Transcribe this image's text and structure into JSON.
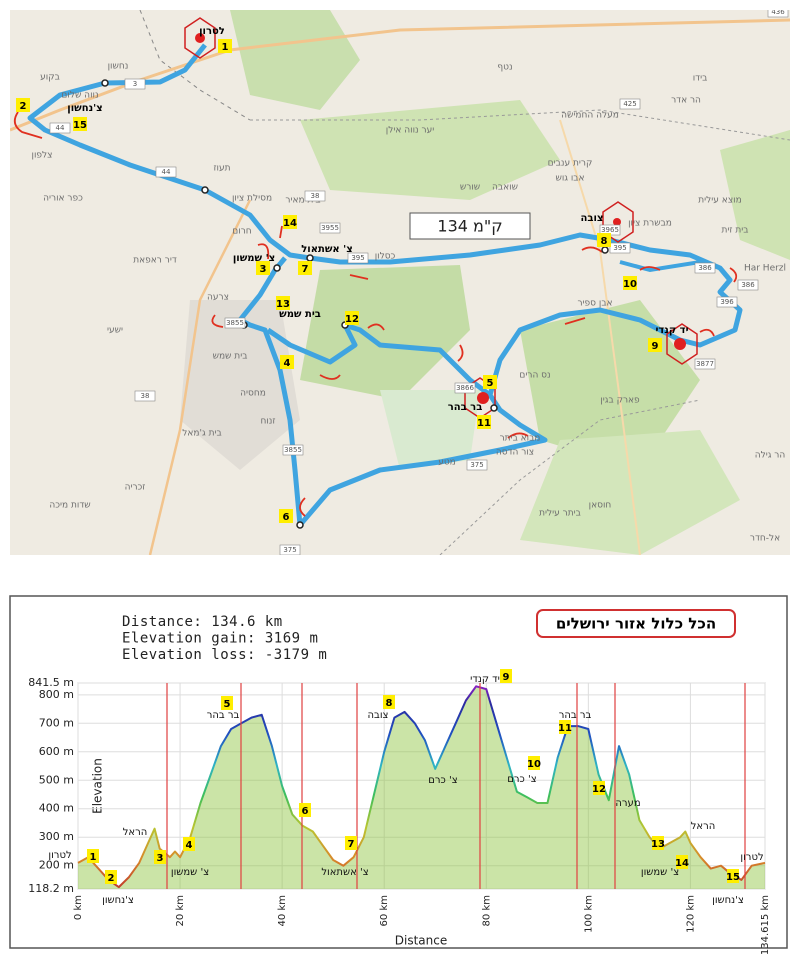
{
  "map": {
    "distance": "134 ק\"מ",
    "markers": [
      "1",
      "2",
      "15",
      "14",
      "3",
      "7",
      "13",
      "4",
      "12",
      "5",
      "11",
      "6",
      "8",
      "10",
      "9"
    ],
    "names": [
      "לטרון",
      "צ'נחשון",
      "צ' שמשון",
      "צ' אשתאול",
      "בית שמש",
      "בר בהר",
      "צובה",
      "יד קנדי"
    ],
    "places": [
      "בקוע",
      "נחשון",
      "נטף",
      "צלפון",
      "תעוז",
      "כפר אוריה",
      "מסילת ציון",
      "בית מאיר",
      "שורש",
      "שואבה",
      "כסלון",
      "יער נווה אילן",
      "קרית ענבים",
      "אבו גוש",
      "מעלה החמישה",
      "צרעה",
      "דיר ראפאת",
      "ישעי",
      "בית שמש",
      "מחסיה",
      "זנוח",
      "בית ג'מאל",
      "שדות מיכה",
      "זכריה",
      "מטע",
      "צור הדסה",
      "מבוא ביתר",
      "ביתר עילית",
      "פארק בגין",
      "חוסאן",
      "הר גילה",
      "אל-חדר",
      "Har Herzl",
      "מבשרת ציון",
      "אבן ספיר",
      "נס הרים",
      "בידו",
      "הר אדר",
      "מוצא עילית",
      "בית זית",
      "נווה שלום",
      "חרום"
    ],
    "roads": [
      "44",
      "44",
      "38",
      "3955",
      "395",
      "395",
      "3965",
      "386",
      "386",
      "396",
      "3877",
      "3866",
      "375",
      "375",
      "3855",
      "3855",
      "38",
      "3",
      "425",
      "436"
    ]
  },
  "chart_data": {
    "type": "area",
    "stats": [
      "Distance: 134.6 km",
      "Elevation gain: 3169 m",
      "Elevation loss: -3179 m"
    ],
    "title": "הכל כלול אזור ירושלים",
    "x_label": "Distance",
    "y_label": "Elevation",
    "x": [
      0,
      2,
      4,
      6,
      8,
      10,
      12,
      14,
      15,
      16,
      18,
      19,
      20,
      22,
      24,
      26,
      28,
      30,
      32,
      34,
      36,
      38,
      40,
      42,
      44,
      46,
      48,
      50,
      52,
      54,
      56,
      58,
      60,
      62,
      64,
      66,
      68,
      70,
      72,
      74,
      76,
      78,
      80,
      82,
      84,
      86,
      88,
      90,
      92,
      94,
      96,
      98,
      100,
      102,
      104,
      106,
      108,
      110,
      112,
      114,
      116,
      118,
      119,
      120,
      122,
      124,
      126,
      128,
      130,
      132,
      134.615
    ],
    "series": [
      {
        "name": "Elevation",
        "color": "#8cc43c",
        "values": [
          210,
          230,
          190,
          150,
          125,
          160,
          210,
          290,
          330,
          260,
          230,
          250,
          230,
          300,
          420,
          520,
          620,
          680,
          700,
          720,
          730,
          620,
          480,
          380,
          340,
          320,
          270,
          220,
          200,
          230,
          300,
          450,
          600,
          720,
          740,
          700,
          640,
          540,
          620,
          700,
          780,
          830,
          820,
          700,
          580,
          460,
          440,
          420,
          420,
          580,
          690,
          690,
          680,
          520,
          430,
          620,
          520,
          360,
          300,
          260,
          280,
          300,
          320,
          280,
          230,
          190,
          200,
          170,
          150,
          200,
          210
        ]
      }
    ],
    "xlim": [
      0,
      134.615
    ],
    "ylim": [
      118.2,
      841.5
    ],
    "xticks": [
      {
        "value": 0,
        "label": "0 km"
      },
      {
        "value": 20,
        "label": "20 km"
      },
      {
        "value": 40,
        "label": "40 km"
      },
      {
        "value": 60,
        "label": "60 km"
      },
      {
        "value": 80,
        "label": "80 km"
      },
      {
        "value": 100,
        "label": "100 km"
      },
      {
        "value": 120,
        "label": "120 km"
      },
      {
        "value": 134.615,
        "label": "134.615 km"
      }
    ],
    "yticks": [
      {
        "value": 118.2,
        "label": "118.2 m"
      },
      {
        "value": 200,
        "label": "200 m"
      },
      {
        "value": 300,
        "label": "300 m"
      },
      {
        "value": 400,
        "label": "400 m"
      },
      {
        "value": 500,
        "label": "500 m"
      },
      {
        "value": 600,
        "label": "600 m"
      },
      {
        "value": 700,
        "label": "700 m"
      },
      {
        "value": 800,
        "label": "800 m"
      },
      {
        "value": 841.5,
        "label": "841.5 m"
      }
    ],
    "grid": true,
    "markers": [
      "1",
      "2",
      "3",
      "4",
      "5",
      "6",
      "7",
      "8",
      "9",
      "10",
      "11",
      "12",
      "13",
      "14",
      "15"
    ],
    "places": [
      "לטרון",
      "צ'נחשון",
      "הראל",
      "צ' שמשון",
      "בר בהר",
      "צ' אשתאול",
      "צובה",
      "יד קנדי",
      "צ' כרם",
      "צ' כרם",
      "בר בהר",
      "מערה",
      "צ' שמשון",
      "הראל",
      "צ'נחשון",
      "לטרון"
    ]
  }
}
